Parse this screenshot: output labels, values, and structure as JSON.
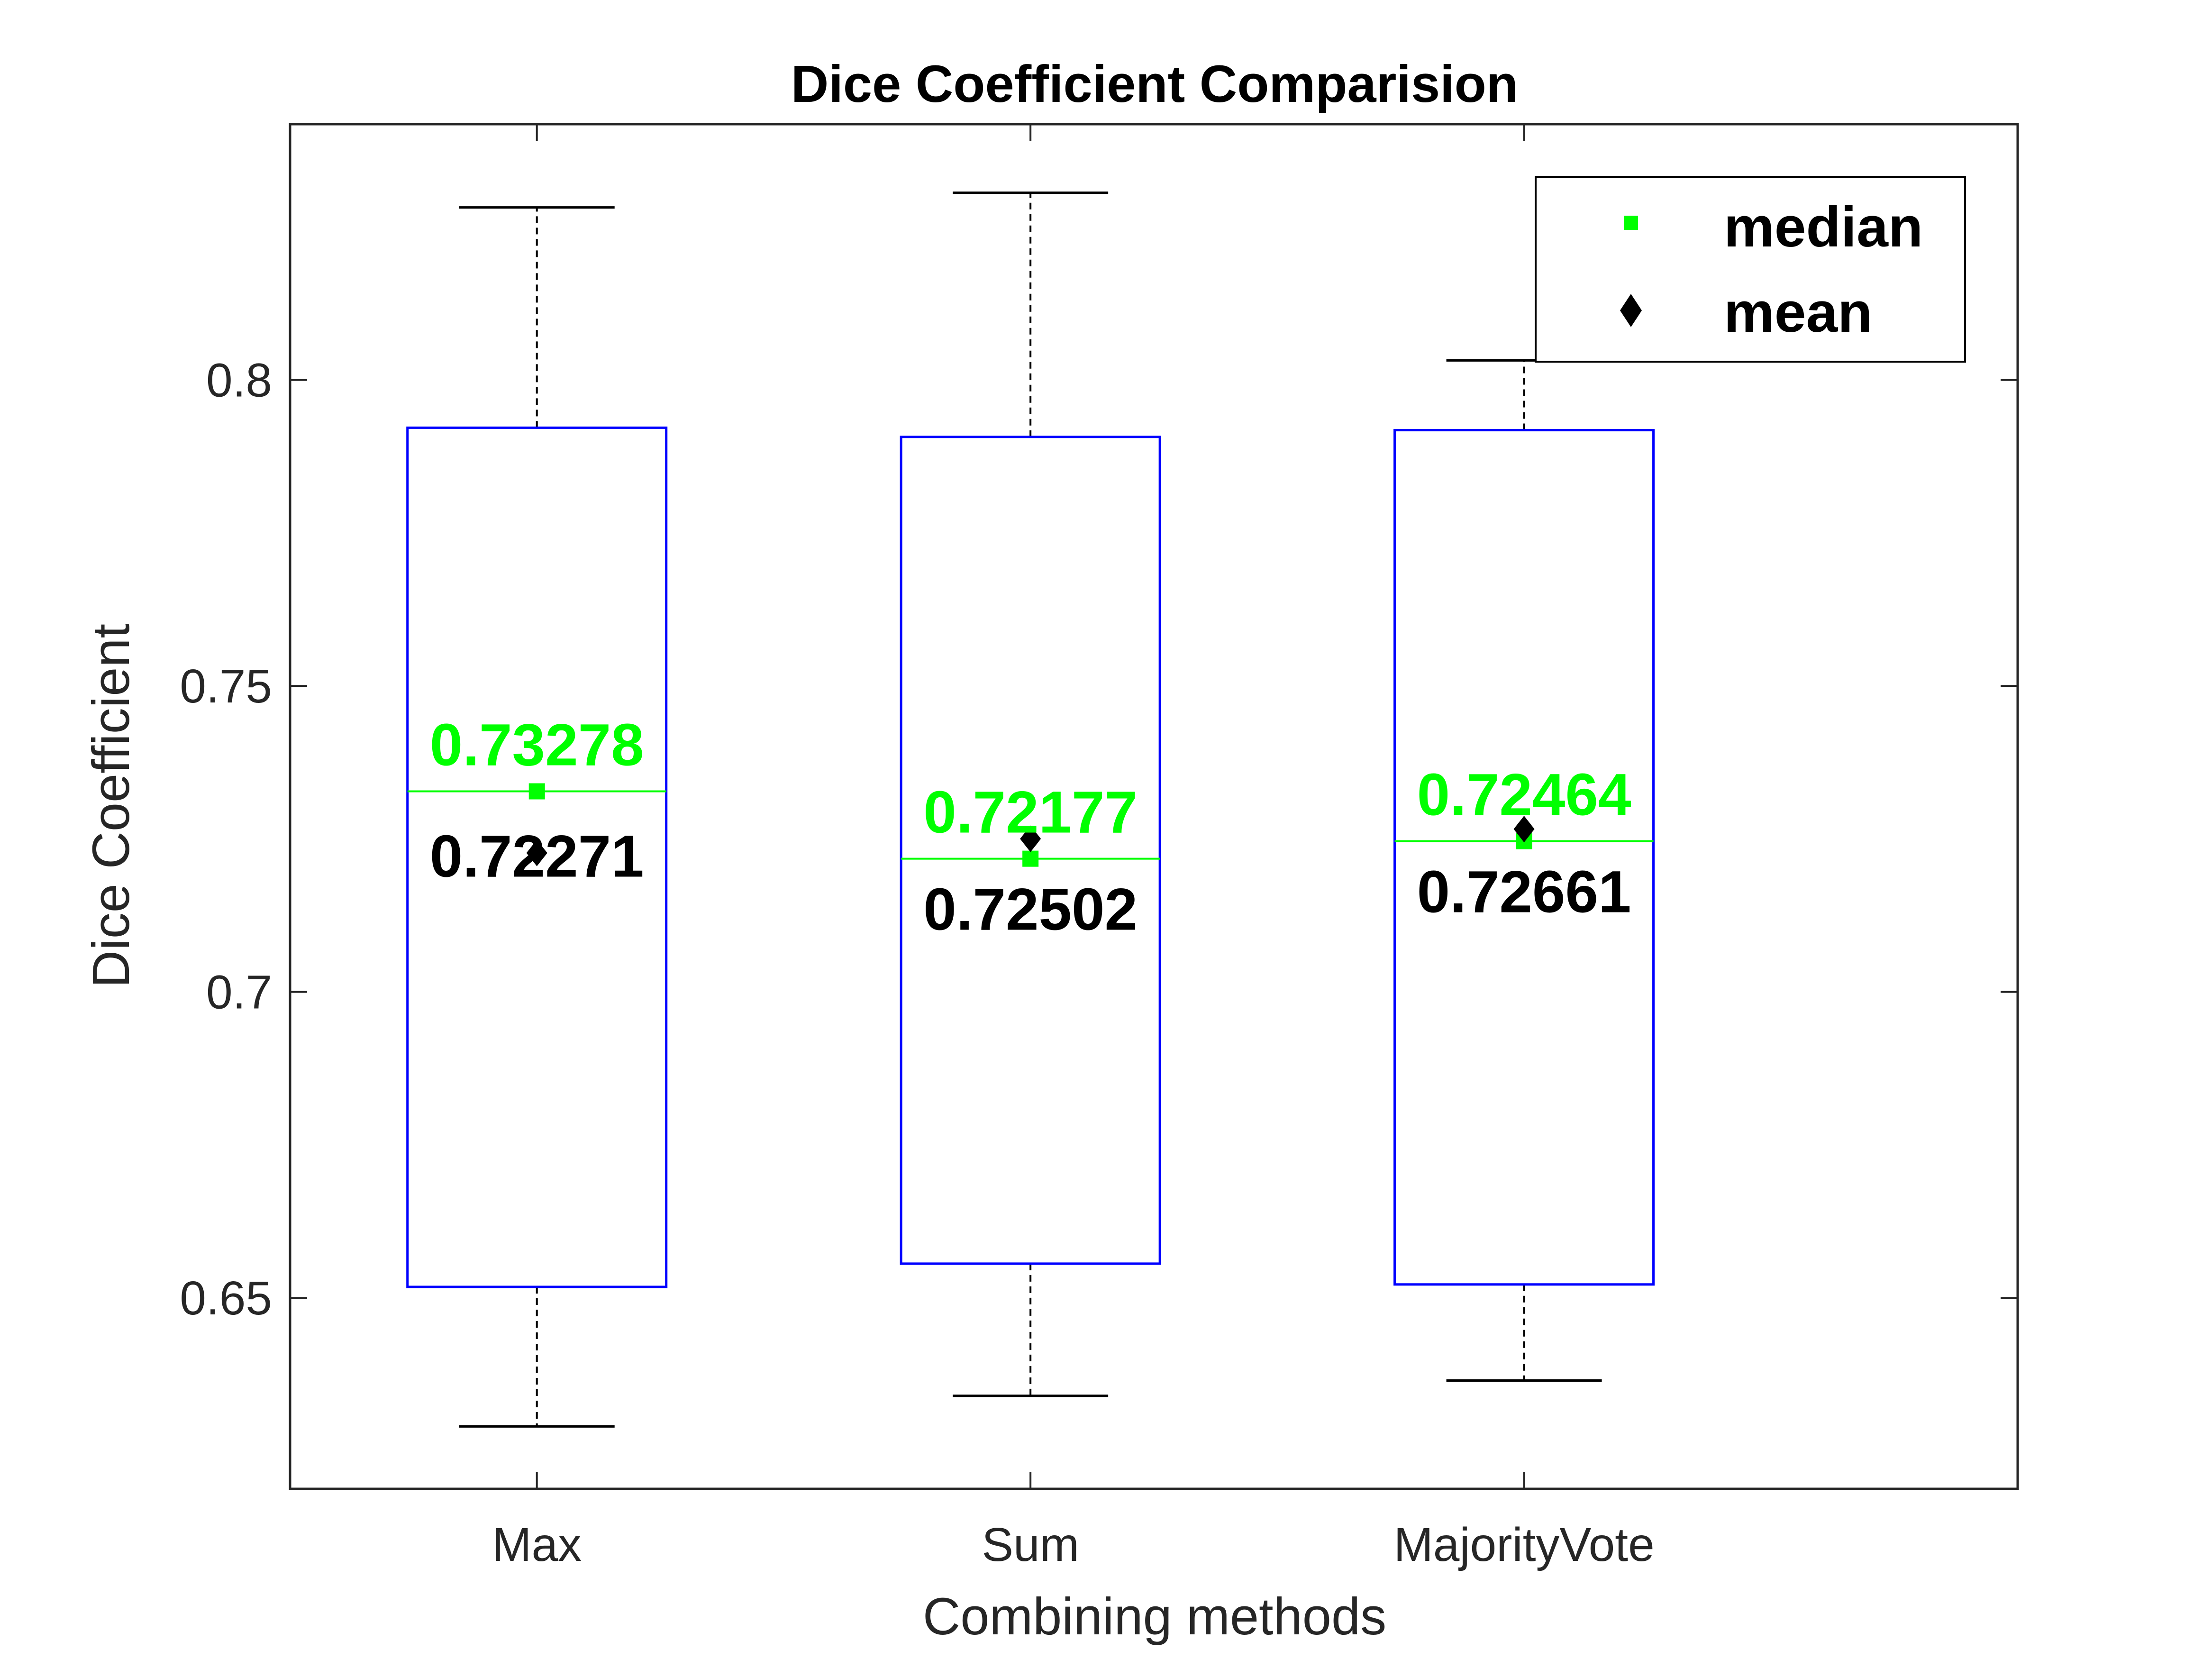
{
  "chart_data": {
    "type": "box",
    "title": "Dice Coefficient Comparision",
    "xlabel": "Combining methods",
    "ylabel": "Dice Coefficient",
    "ylim": [
      0.6188,
      0.8418
    ],
    "yticks": [
      0.65,
      0.7,
      0.75,
      0.8
    ],
    "ytick_labels": [
      "0.65",
      "0.7",
      "0.75",
      "0.8"
    ],
    "grid": false,
    "legend": {
      "placement": "top-right",
      "entries": [
        {
          "label": "median",
          "marker": "square",
          "color": "#00ff00"
        },
        {
          "label": "mean",
          "marker": "diamond",
          "color": "#000000"
        }
      ]
    },
    "categories": [
      "Max",
      "Sum",
      "MajorityVote"
    ],
    "boxes": [
      {
        "category": "Max",
        "whisker_low": 0.629,
        "q1": 0.6518,
        "median": 0.73278,
        "q3": 0.7922,
        "whisker_high": 0.8282,
        "mean": 0.72271
      },
      {
        "category": "Sum",
        "whisker_low": 0.634,
        "q1": 0.6556,
        "median": 0.72177,
        "q3": 0.7907,
        "whisker_high": 0.8306,
        "mean": 0.72502
      },
      {
        "category": "MajorityVote",
        "whisker_low": 0.6365,
        "q1": 0.6522,
        "median": 0.72464,
        "q3": 0.7918,
        "whisker_high": 0.8032,
        "mean": 0.72661
      }
    ],
    "annotations": {
      "median_labels": [
        "0.73278",
        "0.72177",
        "0.72464"
      ],
      "mean_labels": [
        "0.72271",
        "0.72502",
        "0.72661"
      ]
    },
    "colors": {
      "box": "#0000ff",
      "median": "#00ff00",
      "mean": "#000000",
      "whisker": "#000000",
      "axis": "#262626"
    }
  }
}
